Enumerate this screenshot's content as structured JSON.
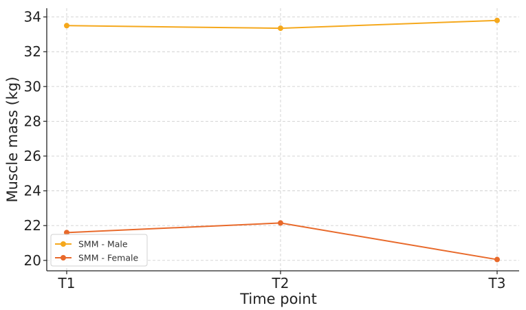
{
  "chart_data": {
    "type": "line",
    "categories": [
      "T1",
      "T2",
      "T3"
    ],
    "series": [
      {
        "name": "SMM - Male",
        "values": [
          33.5,
          33.35,
          33.8
        ],
        "color": "#f5a81c"
      },
      {
        "name": "SMM - Female",
        "values": [
          21.6,
          22.15,
          20.05
        ],
        "color": "#e8692a"
      }
    ],
    "xlabel": "Time point",
    "ylabel": "Muscle mass (kg)",
    "ylim": [
      19.4,
      34.5
    ],
    "yticks": [
      20,
      22,
      24,
      26,
      28,
      30,
      32,
      34
    ],
    "grid": true,
    "legend": "lower-left"
  }
}
